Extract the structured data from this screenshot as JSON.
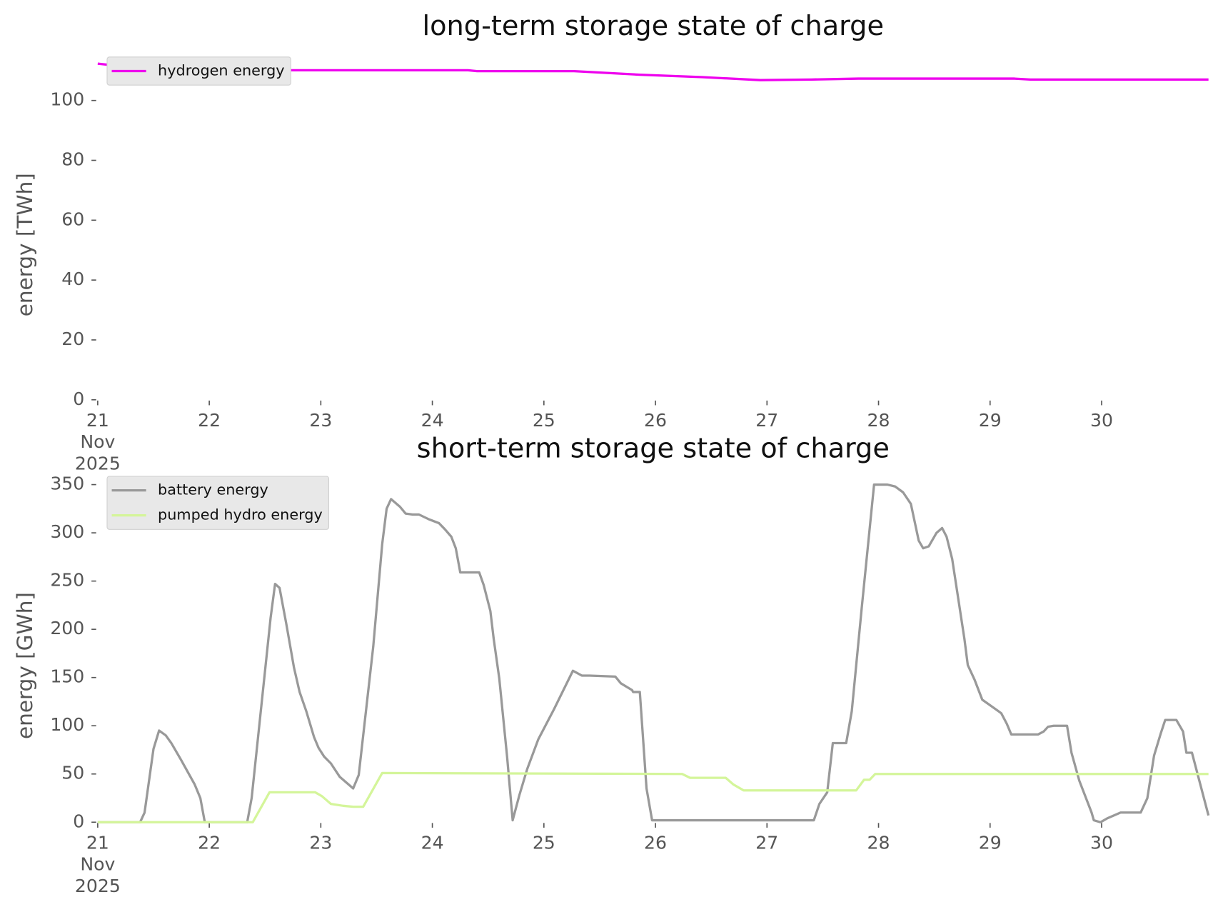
{
  "chart_data": [
    {
      "type": "line",
      "title": "long-term storage state of charge",
      "ylabel": "energy [TWh]",
      "xlim": [
        21,
        30.958
      ],
      "ylim": [
        0,
        114
      ],
      "xticks": [
        {
          "value": 21,
          "label": "21\nNov\n2025"
        },
        22,
        23,
        24,
        25,
        26,
        27,
        28,
        29,
        30
      ],
      "yticks": [
        0,
        20,
        40,
        60,
        80,
        100
      ],
      "legend": "upper left",
      "series": [
        {
          "name": "hydrogen energy",
          "color": "#ee00ee",
          "x": [
            21,
            21.35,
            22.22,
            24.32,
            24.4,
            25.27,
            25.86,
            26.42,
            26.94,
            27.4,
            27.82,
            29.22,
            29.36,
            30.958
          ],
          "values": [
            112.3,
            110.9,
            110.1,
            110.1,
            109.8,
            109.8,
            108.6,
            107.8,
            106.8,
            107,
            107.3,
            107.3,
            107,
            107
          ]
        }
      ]
    },
    {
      "type": "line",
      "title": "short-term storage state of charge",
      "ylabel": "energy [GWh]",
      "xlim": [
        21,
        30.958
      ],
      "ylim": [
        0,
        357
      ],
      "xticks": [
        {
          "value": 21,
          "label": "21\nNov\n2025"
        },
        22,
        23,
        24,
        25,
        26,
        27,
        28,
        29,
        30
      ],
      "yticks": [
        0,
        50,
        100,
        150,
        200,
        250,
        300,
        350
      ],
      "legend": "upper left",
      "series": [
        {
          "name": "battery energy",
          "color": "#999999",
          "x": [
            21,
            21.38,
            21.42,
            21.5,
            21.55,
            21.61,
            21.66,
            21.75,
            21.87,
            21.92,
            21.96,
            22.34,
            22.38,
            22.55,
            22.59,
            22.63,
            22.69,
            22.76,
            22.81,
            22.87,
            22.94,
            22.98,
            23.03,
            23.09,
            23.17,
            23.29,
            23.34,
            23.47,
            23.55,
            23.59,
            23.63,
            23.71,
            23.76,
            23.82,
            23.88,
            23.97,
            24.06,
            24.11,
            24.17,
            24.21,
            24.25,
            24.42,
            24.46,
            24.52,
            24.55,
            24.6,
            24.67,
            24.72,
            24.78,
            24.85,
            24.95,
            25.09,
            25.26,
            25.34,
            25.41,
            25.64,
            25.69,
            25.79,
            25.8,
            25.86,
            25.92,
            25.97,
            27.42,
            27.47,
            27.54,
            27.59,
            27.71,
            27.76,
            27.85,
            27.96,
            28.08,
            28.15,
            28.22,
            28.29,
            28.36,
            28.4,
            28.45,
            28.52,
            28.57,
            28.61,
            28.66,
            28.77,
            28.8,
            28.86,
            28.93,
            29.04,
            29.1,
            29.15,
            29.19,
            29.43,
            29.48,
            29.52,
            29.57,
            29.69,
            29.73,
            29.8,
            29.91,
            29.93,
            29.99,
            30.05,
            30.17,
            30.25,
            30.35,
            30.41,
            30.47,
            30.53,
            30.57,
            30.67,
            30.73,
            30.76,
            30.81,
            30.958
          ],
          "values": [
            0,
            0,
            10,
            76,
            95,
            90,
            82,
            64,
            39,
            25,
            0,
            0,
            25,
            212,
            247,
            243,
            206,
            160,
            135,
            115,
            88,
            77,
            68,
            61,
            47,
            35,
            49,
            182,
            288,
            325,
            335,
            327,
            320,
            319,
            319,
            314,
            310,
            304,
            296,
            284,
            259,
            259,
            246,
            219,
            190,
            149,
            68,
            2,
            28,
            55,
            86,
            117,
            157,
            152,
            152,
            151,
            144,
            137,
            135,
            135,
            35,
            2,
            2,
            19,
            31,
            82,
            82,
            115,
            223,
            350,
            350,
            348,
            342,
            330,
            292,
            284,
            286,
            300,
            305,
            296,
            273,
            190,
            163,
            148,
            127,
            118,
            113,
            102,
            91,
            91,
            94,
            99,
            100,
            100,
            72,
            43,
            10,
            2,
            0,
            4,
            10,
            10,
            10,
            25,
            69,
            92,
            106,
            106,
            94,
            72,
            72,
            7
          ]
        },
        {
          "name": "pumped hydro energy",
          "color": "#d4f59a",
          "x": [
            21,
            22.39,
            22.54,
            22.95,
            23.01,
            23.09,
            23.2,
            23.29,
            23.38,
            23.55,
            26.24,
            26.31,
            26.63,
            26.7,
            26.79,
            27.8,
            27.87,
            27.92,
            27.97,
            30.958
          ],
          "values": [
            0,
            0,
            31,
            31,
            27,
            19,
            17,
            16,
            16,
            51,
            50,
            46,
            46,
            39,
            33,
            33,
            44,
            44,
            50,
            50
          ]
        }
      ]
    }
  ]
}
